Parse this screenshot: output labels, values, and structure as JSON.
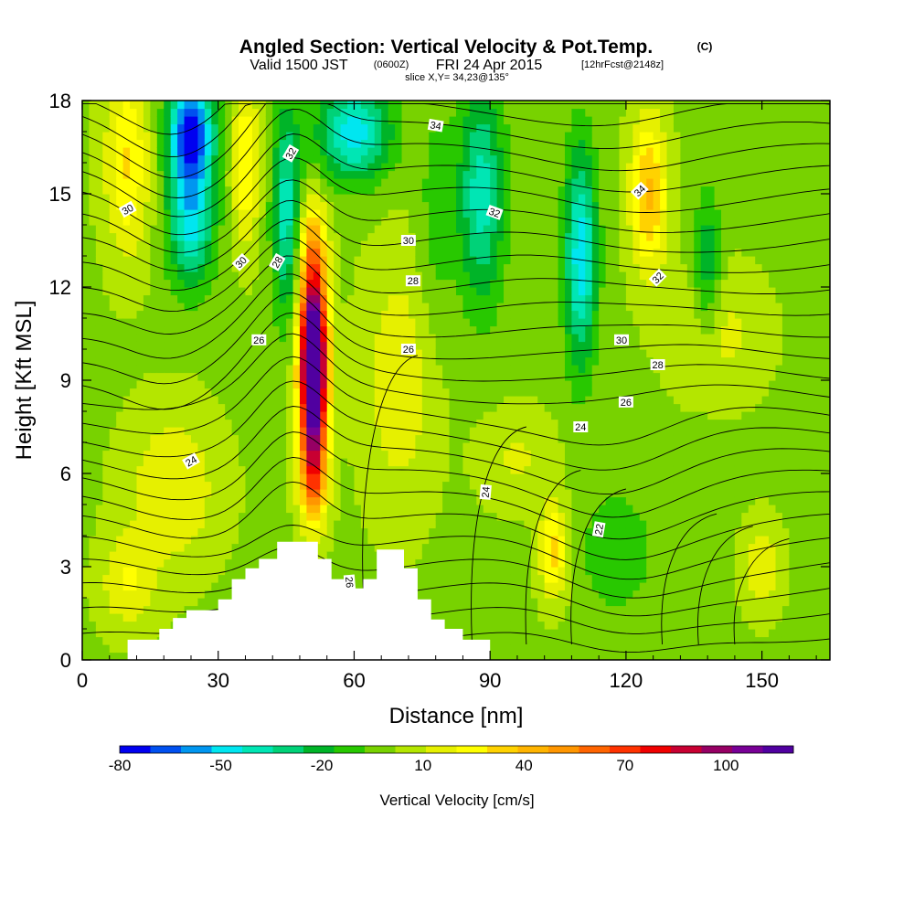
{
  "title": {
    "main": "Angled Section: Vertical Velocity & Pot.Temp.",
    "copyright": "(C)",
    "valid_prefix": "Valid 1500 JST",
    "utc_time": "(0600Z)",
    "valid_date": "FRI 24 Apr 2015",
    "forecast": "[12hrFcst@2148z]",
    "slice": "slice X,Y= 34,23@135°"
  },
  "chart_data": {
    "type": "heatmap",
    "xlabel": "Distance [nm]",
    "ylabel": "Height [Kft MSL]",
    "xlim": [
      0,
      165
    ],
    "ylim": [
      0,
      18
    ],
    "x_ticks": [
      0,
      30,
      60,
      90,
      120,
      150
    ],
    "y_ticks": [
      0,
      3,
      6,
      9,
      12,
      15,
      18
    ],
    "colorbar": {
      "label": "Vertical Velocity [cm/s]",
      "tick_labels": [
        "-80",
        "-50",
        "-20",
        "10",
        "40",
        "70",
        "100"
      ],
      "range": [
        -80,
        120
      ],
      "colors": [
        "#0000f0",
        "#0050f0",
        "#0096f0",
        "#00e6f0",
        "#00e6b4",
        "#00d278",
        "#00b428",
        "#28c800",
        "#78d200",
        "#b4e600",
        "#e6f000",
        "#ffff00",
        "#ffd200",
        "#ffb400",
        "#ff9600",
        "#ff6400",
        "#ff3200",
        "#f00000",
        "#c80032",
        "#960064",
        "#780096",
        "#5000a0"
      ]
    },
    "w_features": [
      {
        "x": 51,
        "y": 9.0,
        "value": 115,
        "sx": 3.0,
        "sy": 2.6
      },
      {
        "x": 51,
        "y": 11.0,
        "value": 60,
        "sx": 3.0,
        "sy": 2.5
      },
      {
        "x": 51,
        "y": 6.0,
        "value": 50,
        "sx": 3.0,
        "sy": 1.8
      },
      {
        "x": 51,
        "y": 13.5,
        "value": 25,
        "sx": 3.0,
        "sy": 1.5
      },
      {
        "x": 24,
        "y": 17.0,
        "value": -75,
        "sx": 5.0,
        "sy": 1.8
      },
      {
        "x": 24,
        "y": 14.0,
        "value": -45,
        "sx": 5.0,
        "sy": 2.0
      },
      {
        "x": 45,
        "y": 14.5,
        "value": -40,
        "sx": 3.0,
        "sy": 3.5
      },
      {
        "x": 60,
        "y": 17.0,
        "value": -50,
        "sx": 8.0,
        "sy": 1.5
      },
      {
        "x": 10,
        "y": 16.0,
        "value": 30,
        "sx": 5.0,
        "sy": 3.0
      },
      {
        "x": 36,
        "y": 16.0,
        "value": 30,
        "sx": 3.0,
        "sy": 2.5
      },
      {
        "x": 88,
        "y": 15.0,
        "value": -40,
        "sx": 5.0,
        "sy": 3.5
      },
      {
        "x": 110,
        "y": 13.0,
        "value": -50,
        "sx": 3.5,
        "sy": 3.5
      },
      {
        "x": 125,
        "y": 15.0,
        "value": 40,
        "sx": 4.0,
        "sy": 2.5
      },
      {
        "x": 104,
        "y": 3.5,
        "value": 35,
        "sx": 3.0,
        "sy": 1.5
      },
      {
        "x": 96,
        "y": 6.5,
        "value": 12,
        "sx": 8.0,
        "sy": 1.5
      },
      {
        "x": 70,
        "y": 9.0,
        "value": 18,
        "sx": 8.0,
        "sy": 4.0
      },
      {
        "x": 20,
        "y": 5.5,
        "value": 20,
        "sx": 10.0,
        "sy": 2.5
      },
      {
        "x": 10,
        "y": 2.5,
        "value": 20,
        "sx": 6.0,
        "sy": 1.5
      },
      {
        "x": 118,
        "y": 3.5,
        "value": -15,
        "sx": 8.0,
        "sy": 2.0
      },
      {
        "x": 140,
        "y": 10.5,
        "value": 15,
        "sx": 10.0,
        "sy": 2.0
      },
      {
        "x": 150,
        "y": 3.0,
        "value": 18,
        "sx": 4.0,
        "sy": 1.5
      },
      {
        "x": 78,
        "y": 14.0,
        "value": -12,
        "sx": 4.0,
        "sy": 4.0
      },
      {
        "x": 138,
        "y": 12.5,
        "value": -25,
        "sx": 3.0,
        "sy": 2.5
      }
    ],
    "terrain": [
      [
        0,
        0.0
      ],
      [
        10,
        0.0
      ],
      [
        10,
        0.65
      ],
      [
        17,
        0.65
      ],
      [
        17,
        1.0
      ],
      [
        20,
        1.0
      ],
      [
        20,
        1.35
      ],
      [
        23,
        1.35
      ],
      [
        23,
        1.6
      ],
      [
        30,
        1.6
      ],
      [
        30,
        1.95
      ],
      [
        33,
        1.95
      ],
      [
        33,
        2.6
      ],
      [
        36,
        2.6
      ],
      [
        36,
        2.95
      ],
      [
        39,
        2.95
      ],
      [
        39,
        3.25
      ],
      [
        43,
        3.25
      ],
      [
        43,
        3.8
      ],
      [
        52,
        3.8
      ],
      [
        52,
        3.25
      ],
      [
        55,
        3.25
      ],
      [
        55,
        2.6
      ],
      [
        58,
        2.6
      ],
      [
        58,
        2.3
      ],
      [
        62,
        2.3
      ],
      [
        62,
        2.6
      ],
      [
        65,
        2.6
      ],
      [
        65,
        3.55
      ],
      [
        71,
        3.55
      ],
      [
        71,
        2.95
      ],
      [
        74,
        2.95
      ],
      [
        74,
        1.95
      ],
      [
        77,
        1.95
      ],
      [
        77,
        1.3
      ],
      [
        80,
        1.3
      ],
      [
        80,
        1.0
      ],
      [
        84,
        1.0
      ],
      [
        84,
        0.65
      ],
      [
        90,
        0.65
      ],
      [
        90,
        0.0
      ],
      [
        165,
        0.0
      ]
    ],
    "contour_labels": [
      {
        "text": "34",
        "x": 78,
        "y": 17.2,
        "rot": 10
      },
      {
        "text": "32",
        "x": 46,
        "y": 16.3,
        "rot": -60
      },
      {
        "text": "30",
        "x": 10,
        "y": 14.5,
        "rot": -30
      },
      {
        "text": "34",
        "x": 123,
        "y": 15.1,
        "rot": -45
      },
      {
        "text": "32",
        "x": 91,
        "y": 14.4,
        "rot": 20
      },
      {
        "text": "30",
        "x": 35,
        "y": 12.8,
        "rot": -45
      },
      {
        "text": "28",
        "x": 43,
        "y": 12.8,
        "rot": -60
      },
      {
        "text": "30",
        "x": 72,
        "y": 13.5,
        "rot": 0
      },
      {
        "text": "28",
        "x": 73,
        "y": 12.2,
        "rot": 0
      },
      {
        "text": "32",
        "x": 127,
        "y": 12.3,
        "rot": -45
      },
      {
        "text": "26",
        "x": 39,
        "y": 10.3,
        "rot": 0
      },
      {
        "text": "26",
        "x": 72,
        "y": 10.0,
        "rot": 0
      },
      {
        "text": "30",
        "x": 119,
        "y": 10.3,
        "rot": 0
      },
      {
        "text": "28",
        "x": 127,
        "y": 9.5,
        "rot": 0
      },
      {
        "text": "26",
        "x": 120,
        "y": 8.3,
        "rot": 0
      },
      {
        "text": "24",
        "x": 110,
        "y": 7.5,
        "rot": 0
      },
      {
        "text": "24",
        "x": 24,
        "y": 6.4,
        "rot": -30
      },
      {
        "text": "24",
        "x": 89,
        "y": 5.4,
        "rot": -85
      },
      {
        "text": "22",
        "x": 114,
        "y": 4.2,
        "rot": -80
      },
      {
        "text": "26",
        "x": 59,
        "y": 2.5,
        "rot": 85
      }
    ]
  }
}
